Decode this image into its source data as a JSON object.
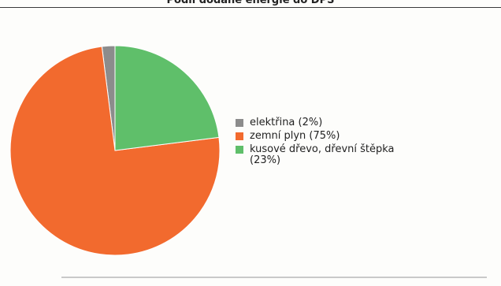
{
  "title": "Podíl dodané energie do DPS",
  "chart_data": {
    "type": "pie",
    "start_angle_deg": 90,
    "direction": "counterclockwise",
    "slices": [
      {
        "label": "elektřina (2%)",
        "value": 2,
        "color": "#8c8c8c"
      },
      {
        "label": "zemní plyn (75%)",
        "value": 75,
        "color": "#f26a2e"
      },
      {
        "label": "kusové dřevo, dřevní štěpka\n(23%)",
        "value": 23,
        "color": "#5fbf6a"
      }
    ],
    "legend_position": "right"
  }
}
